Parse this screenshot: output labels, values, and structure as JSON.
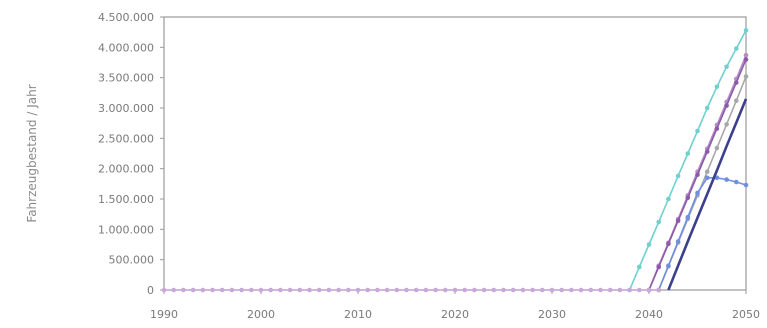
{
  "chart_data": {
    "type": "line",
    "title": "",
    "xlabel": "",
    "ylabel": "Fahrzeugbestand / Jahr",
    "xlim": [
      1990,
      2050
    ],
    "ylim": [
      0,
      4500000
    ],
    "grid": false,
    "x_ticks": [
      1990,
      2000,
      2010,
      2020,
      2030,
      2040,
      2050
    ],
    "x_tick_labels": [
      "1990",
      "2000",
      "2010",
      "2020",
      "2030",
      "2040",
      "2050"
    ],
    "y_ticks": [
      0,
      500000,
      1000000,
      1500000,
      2000000,
      2500000,
      3000000,
      3500000,
      4000000,
      4500000
    ],
    "y_tick_labels": [
      "0",
      "500.000",
      "1.000.000",
      "1.500.000",
      "2.000.000",
      "2.500.000",
      "3.000.000",
      "3.500.000",
      "4.000.000",
      "4.500.000"
    ],
    "series": [
      {
        "color": "#6fd0d0",
        "marker": true,
        "x": [
          2038,
          2039,
          2040,
          2041,
          2042,
          2043,
          2044,
          2045,
          2046,
          2047,
          2048,
          2049,
          2050
        ],
        "y": [
          0,
          380000,
          750000,
          1120000,
          1500000,
          1880000,
          2250000,
          2620000,
          3000000,
          3350000,
          3680000,
          3980000,
          4280000
        ]
      },
      {
        "color": "#b48cc8",
        "marker": true,
        "x": [
          2040,
          2041,
          2042,
          2043,
          2044,
          2045,
          2046,
          2047,
          2048,
          2049,
          2050
        ],
        "y": [
          0,
          400000,
          780000,
          1170000,
          1560000,
          1950000,
          2330000,
          2720000,
          3100000,
          3480000,
          3870000
        ]
      },
      {
        "color": "#8c5aa8",
        "marker": true,
        "x": [
          2040,
          2041,
          2042,
          2043,
          2044,
          2045,
          2046,
          2047,
          2048,
          2049,
          2050
        ],
        "y": [
          0,
          380000,
          760000,
          1140000,
          1520000,
          1900000,
          2280000,
          2660000,
          3040000,
          3420000,
          3800000
        ]
      },
      {
        "color": "#a8a8a8",
        "marker": true,
        "x": [
          2041,
          2042,
          2043,
          2044,
          2045,
          2046,
          2047,
          2048,
          2049,
          2050
        ],
        "y": [
          0,
          390000,
          780000,
          1170000,
          1560000,
          1950000,
          2340000,
          2730000,
          3120000,
          3520000
        ]
      },
      {
        "color": "#6f8fe0",
        "marker": true,
        "x": [
          2041,
          2042,
          2043,
          2044,
          2045,
          2046,
          2047,
          2048,
          2049,
          2050
        ],
        "y": [
          0,
          400000,
          800000,
          1200000,
          1600000,
          1850000,
          1850000,
          1820000,
          1780000,
          1730000
        ]
      },
      {
        "color": "#3b3f8c",
        "marker": false,
        "x": [
          2042,
          2043,
          2044,
          2045,
          2046,
          2047,
          2048,
          2049,
          2050
        ],
        "y": [
          0,
          400000,
          800000,
          1190000,
          1580000,
          1970000,
          2370000,
          2760000,
          3150000
        ]
      },
      {
        "color": "#c8a8d8",
        "marker": true,
        "x": [
          1990,
          1991,
          1992,
          1993,
          1994,
          1995,
          1996,
          1997,
          1998,
          1999,
          2000,
          2001,
          2002,
          2003,
          2004,
          2005,
          2006,
          2007,
          2008,
          2009,
          2010,
          2011,
          2012,
          2013,
          2014,
          2015,
          2016,
          2017,
          2018,
          2019,
          2020,
          2021,
          2022,
          2023,
          2024,
          2025,
          2026,
          2027,
          2028,
          2029,
          2030,
          2031,
          2032,
          2033,
          2034,
          2035,
          2036,
          2037,
          2038,
          2039,
          2040,
          2041
        ],
        "y": [
          0,
          0,
          0,
          0,
          0,
          0,
          0,
          0,
          0,
          0,
          0,
          0,
          0,
          0,
          0,
          0,
          0,
          0,
          0,
          0,
          0,
          0,
          0,
          0,
          0,
          0,
          0,
          0,
          0,
          0,
          0,
          0,
          0,
          0,
          0,
          0,
          0,
          0,
          0,
          0,
          0,
          0,
          0,
          0,
          0,
          0,
          0,
          0,
          0,
          0,
          0,
          0
        ]
      }
    ]
  }
}
